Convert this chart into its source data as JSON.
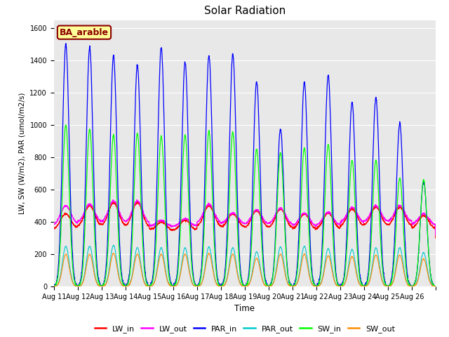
{
  "title": "Solar Radiation",
  "xlabel": "Time",
  "ylabel": "LW, SW (W/m2), PAR (umol/m2/s)",
  "bg_color": "#e8e8e8",
  "ylim": [
    0,
    1650
  ],
  "yticks": [
    0,
    200,
    400,
    600,
    800,
    1000,
    1200,
    1400,
    1600
  ],
  "x_labels": [
    "Aug 11",
    "Aug 12",
    "Aug 13",
    "Aug 14",
    "Aug 15",
    "Aug 16",
    "Aug 17",
    "Aug 18",
    "Aug 19",
    "Aug 20",
    "Aug 21",
    "Aug 22",
    "Aug 23",
    "Aug 24",
    "Aug 25",
    "Aug 26"
  ],
  "legend_entries": [
    "LW_in",
    "LW_out",
    "PAR_in",
    "PAR_out",
    "SW_in",
    "SW_out"
  ],
  "legend_colors": [
    "#ff0000",
    "#ff00ff",
    "#0000ff",
    "#00cccc",
    "#00ff00",
    "#ff8c00"
  ],
  "site_label": "BA_arable",
  "site_label_color": "#8b0000",
  "site_label_bg": "#ffff99",
  "n_days": 16,
  "PAR_in_peaks": [
    1500,
    1480,
    1430,
    1370,
    1480,
    1390,
    1430,
    1440,
    1270,
    975,
    1265,
    1310,
    1140,
    1170,
    1010,
    650
  ],
  "SW_in_peaks": [
    1000,
    975,
    940,
    950,
    930,
    940,
    960,
    955,
    850,
    830,
    860,
    880,
    780,
    780,
    670,
    660
  ],
  "LW_in_day": [
    450,
    500,
    520,
    520,
    400,
    410,
    500,
    450,
    470,
    480,
    450,
    455,
    480,
    490,
    490,
    440
  ],
  "LW_out_day": [
    500,
    510,
    530,
    530,
    410,
    420,
    510,
    455,
    475,
    485,
    455,
    460,
    490,
    500,
    500,
    450
  ],
  "LW_in_night": [
    350,
    360,
    360,
    355,
    340,
    340,
    360,
    355,
    350,
    350,
    340,
    345,
    360,
    365,
    365,
    350
  ],
  "LW_out_night": [
    375,
    385,
    385,
    382,
    365,
    365,
    385,
    380,
    375,
    375,
    365,
    370,
    385,
    390,
    390,
    375
  ],
  "PAR_out_peaks": [
    250,
    250,
    255,
    240,
    240,
    240,
    245,
    240,
    215,
    245,
    250,
    235,
    230,
    240,
    240,
    210
  ],
  "SW_out_peaks": [
    200,
    200,
    205,
    200,
    200,
    200,
    205,
    200,
    175,
    200,
    200,
    190,
    185,
    195,
    195,
    170
  ]
}
